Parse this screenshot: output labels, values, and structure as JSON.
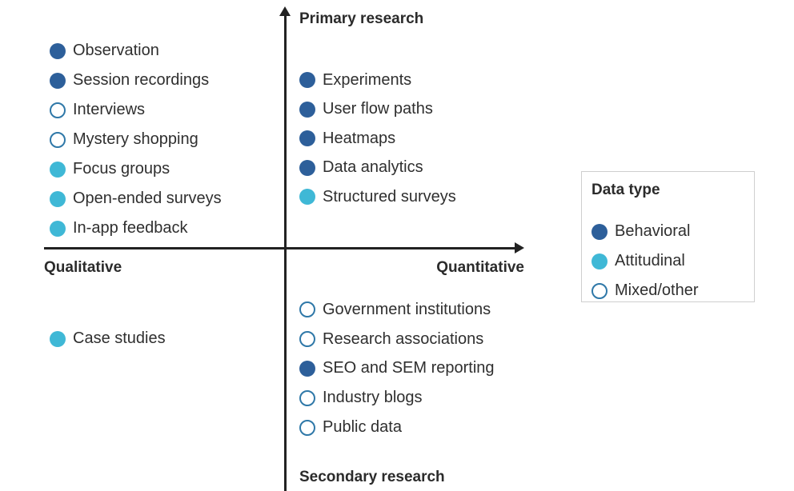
{
  "axes": {
    "top": "Primary research",
    "bottom": "Secondary research",
    "left": "Qualitative",
    "right": "Quantitative"
  },
  "quadrants": {
    "primary_qualitative": [
      {
        "label": "Observation",
        "type": "behavioral"
      },
      {
        "label": "Session recordings",
        "type": "behavioral"
      },
      {
        "label": "Interviews",
        "type": "mixed"
      },
      {
        "label": "Mystery shopping",
        "type": "mixed"
      },
      {
        "label": "Focus groups",
        "type": "attitudinal"
      },
      {
        "label": "Open-ended surveys",
        "type": "attitudinal"
      },
      {
        "label": "In-app feedback",
        "type": "attitudinal"
      }
    ],
    "primary_quantitative": [
      {
        "label": "Experiments",
        "type": "behavioral"
      },
      {
        "label": "User flow paths",
        "type": "behavioral"
      },
      {
        "label": "Heatmaps",
        "type": "behavioral"
      },
      {
        "label": "Data analytics",
        "type": "behavioral"
      },
      {
        "label": "Structured surveys",
        "type": "attitudinal"
      }
    ],
    "secondary_qualitative": [
      {
        "label": "Case studies",
        "type": "attitudinal"
      }
    ],
    "secondary_quantitative": [
      {
        "label": "Government institutions",
        "type": "mixed"
      },
      {
        "label": "Research associations",
        "type": "mixed"
      },
      {
        "label": "SEO and SEM reporting",
        "type": "behavioral"
      },
      {
        "label": "Industry blogs",
        "type": "mixed"
      },
      {
        "label": "Public data",
        "type": "mixed"
      }
    ]
  },
  "legend": {
    "title": "Data type",
    "entries": [
      {
        "label": "Behavioral",
        "type": "behavioral"
      },
      {
        "label": "Attitudinal",
        "type": "attitudinal"
      },
      {
        "label": "Mixed/other",
        "type": "mixed"
      }
    ]
  },
  "colors": {
    "behavioral": "#2d5f9a",
    "attitudinal": "#3fb8d6",
    "mixed_outline": "#2f78a8",
    "axis": "#222222"
  }
}
